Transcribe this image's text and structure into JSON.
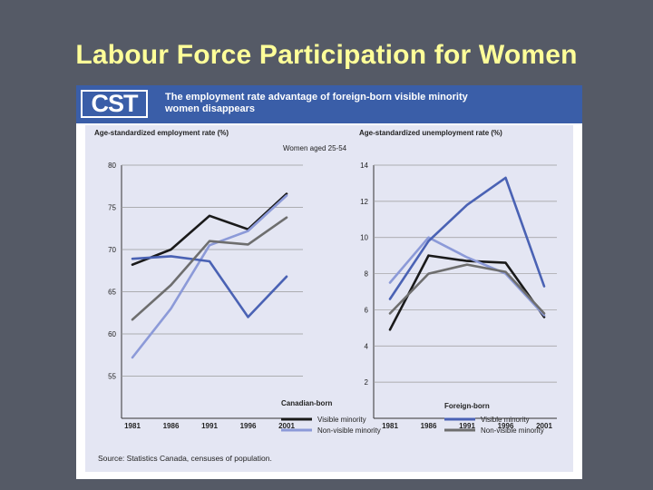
{
  "slide": {
    "title": "Labour Force Participation for Women"
  },
  "figure": {
    "logo": "CST",
    "header_line1": "The employment rate advantage of foreign-born visible minority",
    "header_line2": "women disappears",
    "left_subtitle": "Age-standardized employment rate (%)",
    "right_subtitle": "Age-standardized unemployment rate (%)",
    "group_label": "Women aged 25-54",
    "source": "Source: Statistics Canada, censuses of population.",
    "legend": {
      "group1_title": "Canadian-born",
      "group2_title": "Foreign-born",
      "cb_vm": "Visible minority",
      "cb_nvm": "Non-visible minority",
      "fb_vm": "Visible minority",
      "fb_nvm": "Non-visible minority"
    }
  },
  "colors": {
    "cb_vm": "#1a1a1a",
    "cb_nvm": "#8c9ad8",
    "fb_vm": "#4a62b4",
    "fb_nvm": "#6e6e6e"
  },
  "chart_data": [
    {
      "type": "line",
      "title": "Age-standardized employment rate (%)",
      "x": [
        "1981",
        "1986",
        "1991",
        "1996",
        "2001"
      ],
      "ylim": [
        50,
        80
      ],
      "yticks": [
        55,
        60,
        65,
        70,
        75,
        80
      ],
      "series": [
        {
          "name": "Canadian-born Visible minority",
          "values": [
            68.2,
            70.0,
            74.0,
            72.4,
            76.6
          ]
        },
        {
          "name": "Canadian-born Non-visible minority",
          "values": [
            57.2,
            63.0,
            70.5,
            72.2,
            76.4
          ]
        },
        {
          "name": "Foreign-born Visible minority",
          "values": [
            68.9,
            69.2,
            68.6,
            62.0,
            66.8
          ]
        },
        {
          "name": "Foreign-born Non-visible minority",
          "values": [
            61.7,
            65.8,
            71.0,
            70.6,
            73.8
          ]
        }
      ]
    },
    {
      "type": "line",
      "title": "Age-standardized unemployment rate (%)",
      "x": [
        "1981",
        "1986",
        "1991",
        "1996",
        "2001"
      ],
      "ylim": [
        0,
        14
      ],
      "yticks": [
        2,
        4,
        6,
        8,
        10,
        12,
        14
      ],
      "series": [
        {
          "name": "Canadian-born Visible minority",
          "values": [
            4.9,
            9.0,
            8.7,
            8.6,
            5.6
          ]
        },
        {
          "name": "Canadian-born Non-visible minority",
          "values": [
            7.5,
            10.0,
            8.9,
            8.0,
            5.7
          ]
        },
        {
          "name": "Foreign-born Visible minority",
          "values": [
            6.6,
            9.8,
            11.8,
            13.3,
            7.3
          ]
        },
        {
          "name": "Foreign-born Non-visible minority",
          "values": [
            5.8,
            8.0,
            8.5,
            8.1,
            5.8
          ]
        }
      ]
    }
  ]
}
